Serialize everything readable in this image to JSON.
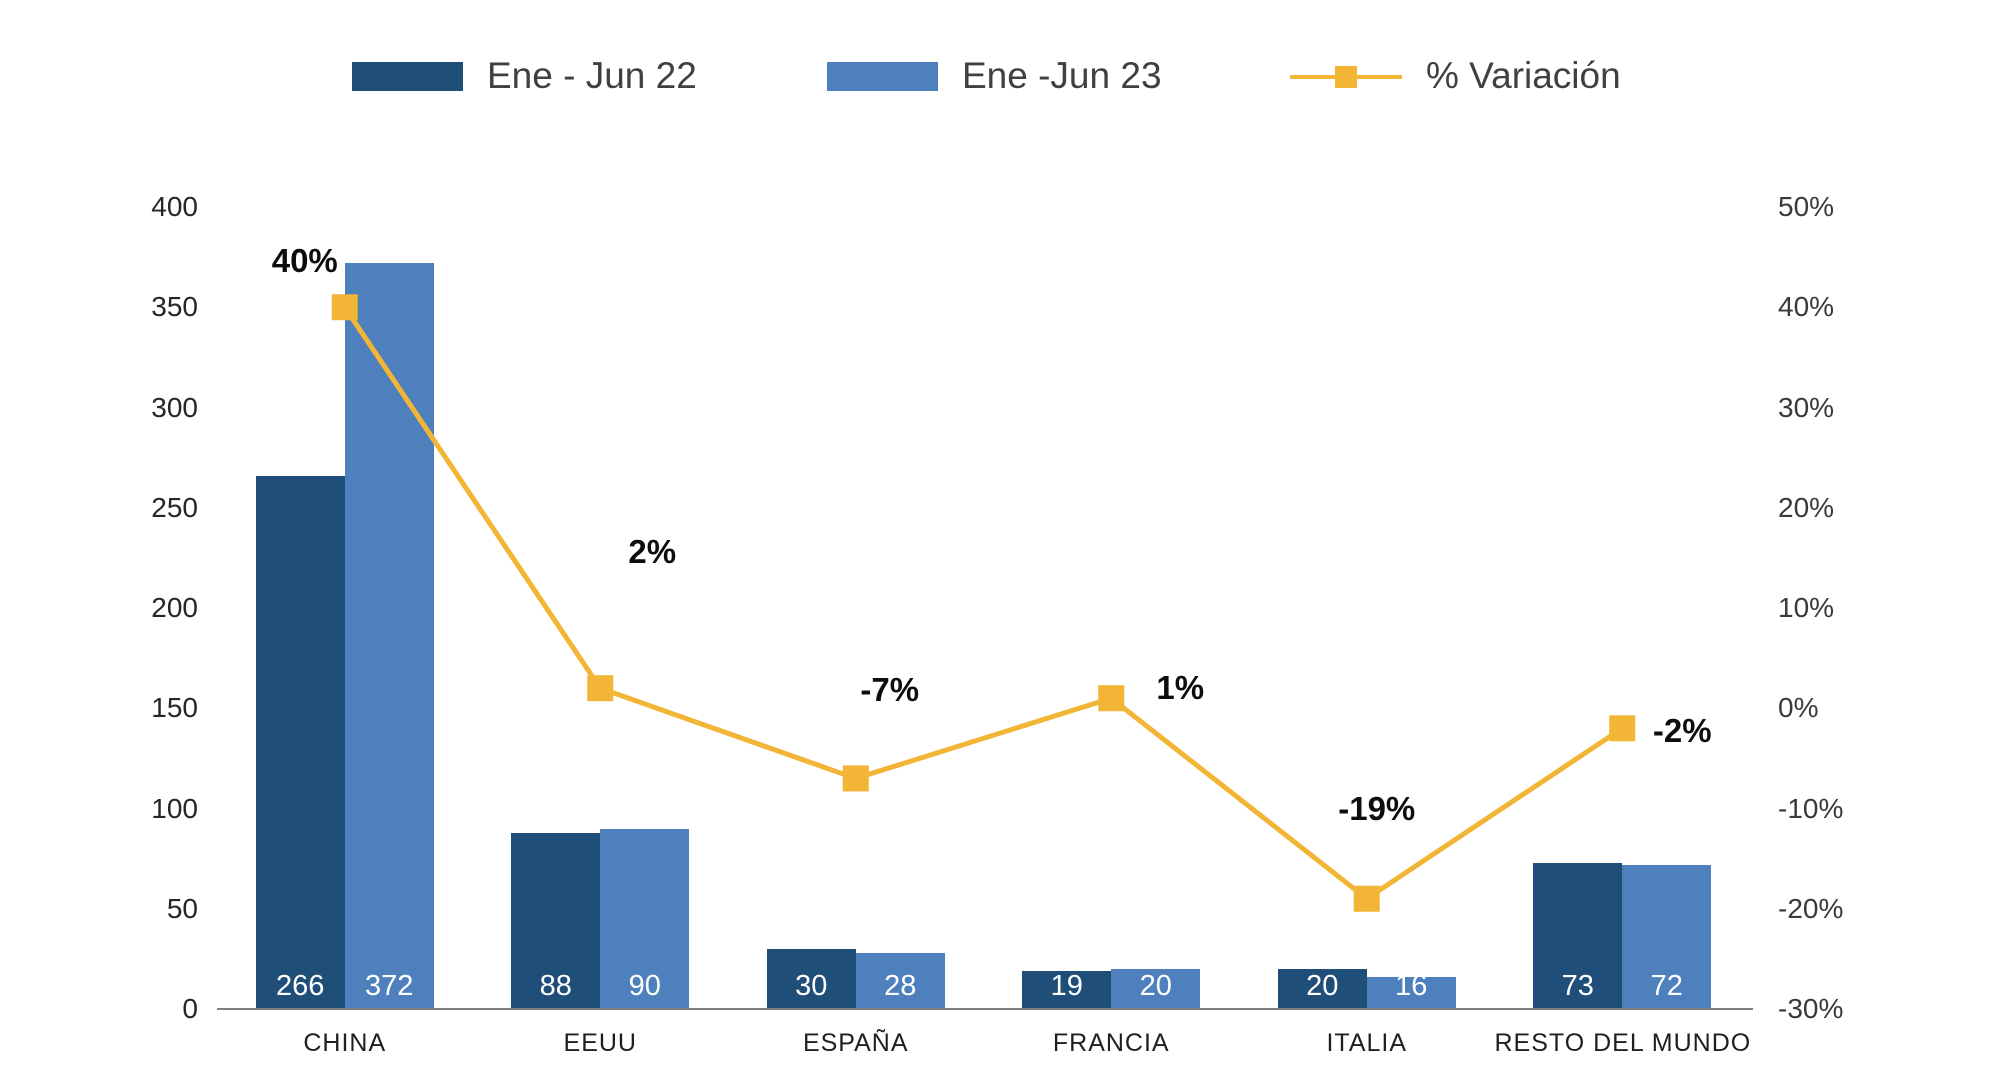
{
  "legend": {
    "series1_label": "Ene - Jun 22",
    "series2_label": "Ene -Jun 23",
    "line_label": "% Variación"
  },
  "colors": {
    "series1": "#1F4E79",
    "series2": "#4E80BD",
    "line": "#F2B535",
    "axis_line": "#808080",
    "legend_text": "#404040",
    "tick_text": "#262626",
    "bar_value_text": "#FFFFFF",
    "variation_label_text": "#0D0D0D"
  },
  "chart_data": {
    "type": "bar",
    "subtype": "grouped-bars-with-line-overlay",
    "categories": [
      "CHINA",
      "EEUU",
      "ESPAÑA",
      "FRANCIA",
      "ITALIA",
      "RESTO DEL MUNDO"
    ],
    "series": [
      {
        "name": "Ene - Jun 22",
        "axis": "left",
        "values": [
          266,
          88,
          30,
          19,
          20,
          73
        ]
      },
      {
        "name": "Ene -Jun 23",
        "axis": "left",
        "values": [
          372,
          90,
          28,
          20,
          16,
          72
        ]
      }
    ],
    "line_series": {
      "name": "% Variación",
      "axis": "right",
      "values_pct": [
        40,
        2,
        -7,
        1,
        -19,
        -2
      ],
      "point_labels": [
        "40%",
        "2%",
        "-7%",
        "1%",
        "-19%",
        "-2%"
      ]
    },
    "left_axis": {
      "min": 0,
      "max": 400,
      "step": 50,
      "tick_labels": [
        "0",
        "50",
        "100",
        "150",
        "200",
        "250",
        "300",
        "350",
        "400"
      ]
    },
    "right_axis": {
      "min": -30,
      "max": 50,
      "step": 10,
      "tick_labels": [
        "-30%",
        "-20%",
        "-10%",
        "0%",
        "10%",
        "20%",
        "30%",
        "40%",
        "50%"
      ]
    },
    "grid": false,
    "legend_position": "top",
    "bar_value_labels_inside_base": true,
    "title": "",
    "xlabel": "",
    "ylabel_left": "",
    "ylabel_right": ""
  }
}
